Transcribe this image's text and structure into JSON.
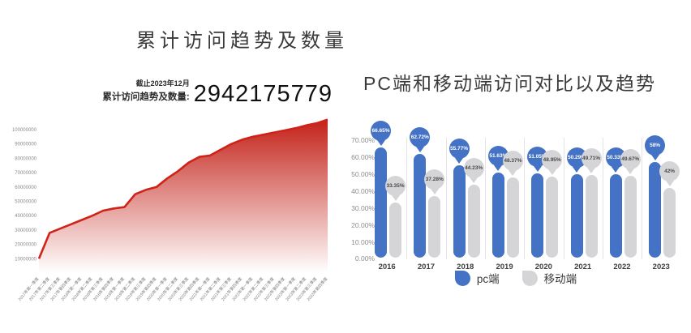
{
  "left_panel": {
    "title": "累计访问趋势及数量",
    "asof_label": "截止2023年12月",
    "total_label": "累计访问趋势及数量:",
    "total_value": "2942175779"
  },
  "right_panel": {
    "title": "PC端和移动端访问对比以及趋势"
  },
  "chart_data": [
    {
      "type": "area",
      "title": "累计访问趋势及数量",
      "categories": [
        "2017年第一季度",
        "2017年第二季度",
        "2017年第三季度",
        "2017年第四季度",
        "2018年第一季度",
        "2018年第二季度",
        "2018年第三季度",
        "2018年第四季度",
        "2019年第一季度",
        "2019年第二季度",
        "2019年第三季度",
        "2019年第四季度",
        "2020年第一季度",
        "2020年第二季度",
        "2020年第三季度",
        "2020年第四季度",
        "2021年第一季度",
        "2021年第二季度",
        "2021年第三季度",
        "2021年第四季度",
        "2022年第一季度",
        "2022年第二季度",
        "2022年第三季度",
        "2022年第四季度",
        "2023年第一季度",
        "2023年第二季度",
        "2023年第三季度",
        "2023年第四季度"
      ],
      "values": [
        10000000,
        28000000,
        31000000,
        34000000,
        37000000,
        40000000,
        43500000,
        45000000,
        46000000,
        55000000,
        58000000,
        60000000,
        66000000,
        71000000,
        77000000,
        81000000,
        82000000,
        86000000,
        90000000,
        93000000,
        95000000,
        96500000,
        98000000,
        99500000,
        101000000,
        103000000,
        104500000,
        107000000
      ],
      "yticks": [
        "10000000",
        "20000000",
        "30000000",
        "40000000",
        "50000000",
        "60000000",
        "70000000",
        "80000000",
        "90000000",
        "100000000"
      ],
      "ylim": [
        0,
        110000000
      ],
      "xlabel": "",
      "ylabel": "",
      "grid": false,
      "line_color": "#cf2318",
      "fill_gradient_top": "#c32017",
      "fill_gradient_bottom": "#ffffff"
    },
    {
      "type": "bar",
      "title": "PC端和移动端访问对比以及趋势",
      "categories": [
        "2016",
        "2017",
        "2018",
        "2019",
        "2020",
        "2021",
        "2022",
        "2023"
      ],
      "series": [
        {
          "name": "pc端",
          "color": "#4472c4",
          "label_text_color": "#ffffff",
          "values": [
            66.65,
            62.72,
            55.77,
            51.63,
            51.05,
            50.29,
            50.33,
            58
          ],
          "labels": [
            "66.65%",
            "62.72%",
            "55.77%",
            "51.63%",
            "51.05%",
            "50.29%",
            "50.33%",
            "58%"
          ]
        },
        {
          "name": "移动端",
          "color": "#d5d5d7",
          "label_text_color": "#4a4a4a",
          "values": [
            33.35,
            37.28,
            44.23,
            48.37,
            48.95,
            49.71,
            49.67,
            42
          ],
          "labels": [
            "33.35%",
            "37.28%",
            "44.23%",
            "48.37%",
            "48.95%",
            "49.71%",
            "49.67%",
            "42%"
          ]
        }
      ],
      "yticks": [
        "70.00%",
        "60.00%",
        "50.00%",
        "40.00%",
        "30.00%",
        "20.00%",
        "10.00%",
        "0.00%"
      ],
      "ylim": [
        0,
        70
      ],
      "xlabel": "",
      "ylabel": "",
      "grid": false,
      "legend_position": "bottom"
    }
  ]
}
